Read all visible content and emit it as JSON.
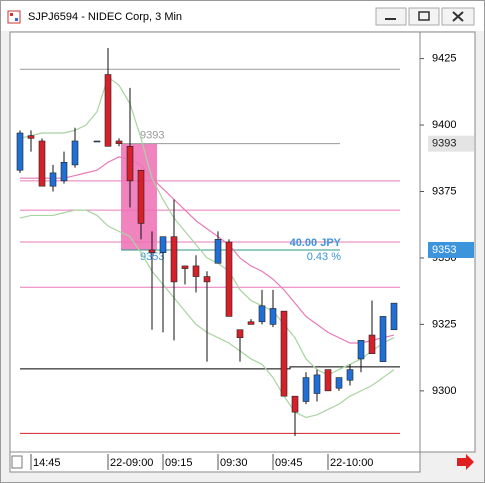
{
  "window": {
    "title": "SJPJ6594 - NIDEC Corp, 3 Min"
  },
  "chart_data": {
    "type": "candlestick",
    "categories": [
      null,
      "14:45",
      null,
      null,
      null,
      null,
      null,
      null,
      "22-09:00",
      null,
      null,
      null,
      null,
      "09:15",
      null,
      null,
      null,
      null,
      "09:30",
      null,
      null,
      null,
      null,
      "09:45",
      null,
      null,
      null,
      null,
      "22-10:00",
      null,
      null,
      null,
      null,
      null,
      null
    ],
    "open": [
      9383,
      9396,
      9394,
      9377,
      9379,
      9385,
      null,
      9394,
      9419,
      9394,
      9392,
      9383,
      9353,
      9352,
      9358,
      9347,
      9347,
      9343,
      9348,
      9356,
      9323,
      9326,
      9326,
      9325,
      9330,
      9298,
      9296,
      9299,
      9308,
      9301,
      9304,
      9312,
      9321,
      9311,
      9323
    ],
    "high": [
      9398,
      9398,
      9395,
      9385,
      9390,
      9399,
      null,
      9394,
      9429,
      9395,
      9414,
      9383,
      9360,
      9358,
      9372,
      9347,
      9351,
      9345,
      9360,
      9357,
      9323,
      9327,
      9338,
      9338,
      9330,
      9298,
      9307,
      9308,
      9308,
      9305,
      9310,
      9319,
      9334,
      9328,
      9333
    ],
    "low": [
      9382,
      9390,
      9377,
      9375,
      9378,
      9384,
      null,
      9394,
      9392,
      9392,
      9369,
      9357,
      9323,
      9322,
      9319,
      9340,
      9337,
      9311,
      9348,
      9328,
      9311,
      9325,
      9325,
      9324,
      9298,
      9283,
      9295,
      9296,
      9300,
      9300,
      9302,
      9307,
      9314,
      9311,
      9323
    ],
    "close": [
      9397,
      9395,
      9377,
      9382,
      9386,
      9394,
      null,
      9394,
      9392,
      9393,
      9379,
      9363,
      9352,
      9358,
      9341,
      9346,
      9343,
      9341,
      9357,
      9328,
      9320,
      9325,
      9332,
      9331,
      9298,
      9292,
      9305,
      9306,
      9300,
      9305,
      9308,
      9319,
      9314,
      9328,
      9333
    ],
    "up_color": "#1f6fd6",
    "down_color": "#d6202a",
    "lines": [
      {
        "color": "#e87ab8",
        "values": [
          9380,
          9380,
          9380,
          9380,
          9380,
          9381,
          9382,
          9383,
          9386,
          9388,
          9387,
          9385,
          9380,
          9376,
          9372,
          9368,
          9364,
          9361,
          9358,
          9355,
          9350,
          9347,
          9345,
          9342,
          9338,
          9333,
          9328,
          9325,
          9322,
          9320,
          9318,
          9318,
          9319,
          9320,
          9321
        ]
      },
      {
        "color": "#a8d4a0",
        "values": [
          9395,
          9396,
          9397,
          9397,
          9397,
          9398,
          9400,
          9405,
          9418,
          9415,
          9408,
          9395,
          9380,
          9372,
          9365,
          9360,
          9355,
          9350,
          9348,
          9345,
          9338,
          9334,
          9332,
          9330,
          9325,
          9320,
          9312,
          9308,
          9306,
          9308,
          9310,
          9312,
          9315,
          9318,
          9320
        ]
      },
      {
        "color": "#a8d4a0",
        "values": [
          9365,
          9366,
          9366,
          9366,
          9367,
          9368,
          9368,
          9366,
          9362,
          9360,
          9358,
          9352,
          9345,
          9340,
          9335,
          9330,
          9325,
          9322,
          9320,
          9318,
          9315,
          9312,
          9310,
          9305,
          9298,
          9292,
          9290,
          9291,
          9293,
          9295,
          9298,
          9300,
          9302,
          9305,
          9308
        ]
      }
    ],
    "levels": [
      {
        "value": 9421,
        "color": "#999999"
      },
      {
        "value": 9379,
        "color": "#e87ab8"
      },
      {
        "value": 9368,
        "color": "#e87ab8"
      },
      {
        "value": 9356,
        "color": "#e87ab8"
      },
      {
        "value": 9339,
        "color": "#e87ab8"
      },
      {
        "value": 9309,
        "color": "#000000"
      },
      {
        "value": 9284,
        "color": "#d6202a"
      }
    ],
    "measure": {
      "from": 9393,
      "to": 9353,
      "change": "40.00 JPY",
      "percent": "0.43 %",
      "color": "#ee6fb4"
    },
    "price_labels": [
      {
        "value": 9393,
        "color": "#e4e4e4"
      },
      {
        "value": 9353,
        "color": "#3c94dc"
      }
    ],
    "ylim": [
      9277,
      9435
    ],
    "yticks": [
      9300,
      9325,
      9350,
      9375,
      9400,
      9425
    ]
  }
}
